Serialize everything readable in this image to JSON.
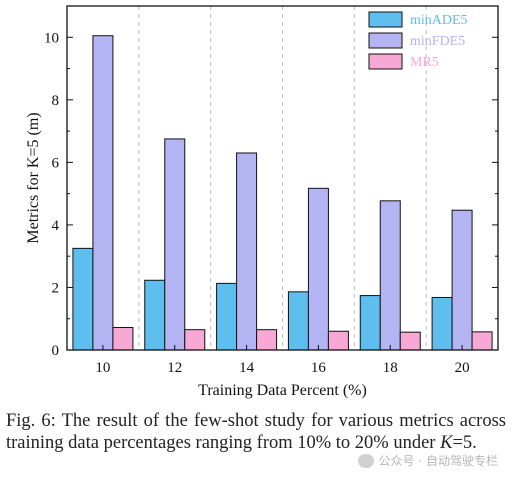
{
  "chart_data": {
    "type": "bar",
    "xlabel": "Training Data Percent (%)",
    "ylabel": "Metrics for K=5 (m)",
    "categories": [
      "10",
      "12",
      "14",
      "16",
      "18",
      "20"
    ],
    "ylim": [
      0,
      11
    ],
    "yticks": [
      "0",
      "2",
      "4",
      "6",
      "8",
      "10"
    ],
    "series": [
      {
        "name": "minADE5",
        "color": "#5ebfee",
        "values": [
          3.25,
          2.23,
          2.13,
          1.86,
          1.74,
          1.68
        ]
      },
      {
        "name": "minFDE5",
        "color": "#b4b4f2",
        "values": [
          10.05,
          6.75,
          6.3,
          5.17,
          4.77,
          4.47
        ]
      },
      {
        "name": "MR5",
        "color": "#f7a8d4",
        "values": [
          0.72,
          0.65,
          0.65,
          0.6,
          0.57,
          0.58
        ]
      }
    ],
    "legend_position": "top-right",
    "grid": "vertical dashed separators between groups"
  },
  "caption": {
    "prefix": "Fig. 6: The result of the few-shot study for various metrics across training data percentages ranging from 10% to 20% under ",
    "var": "K",
    "suffix": "=5."
  },
  "watermark": "公众号 · 自动驾驶专栏"
}
